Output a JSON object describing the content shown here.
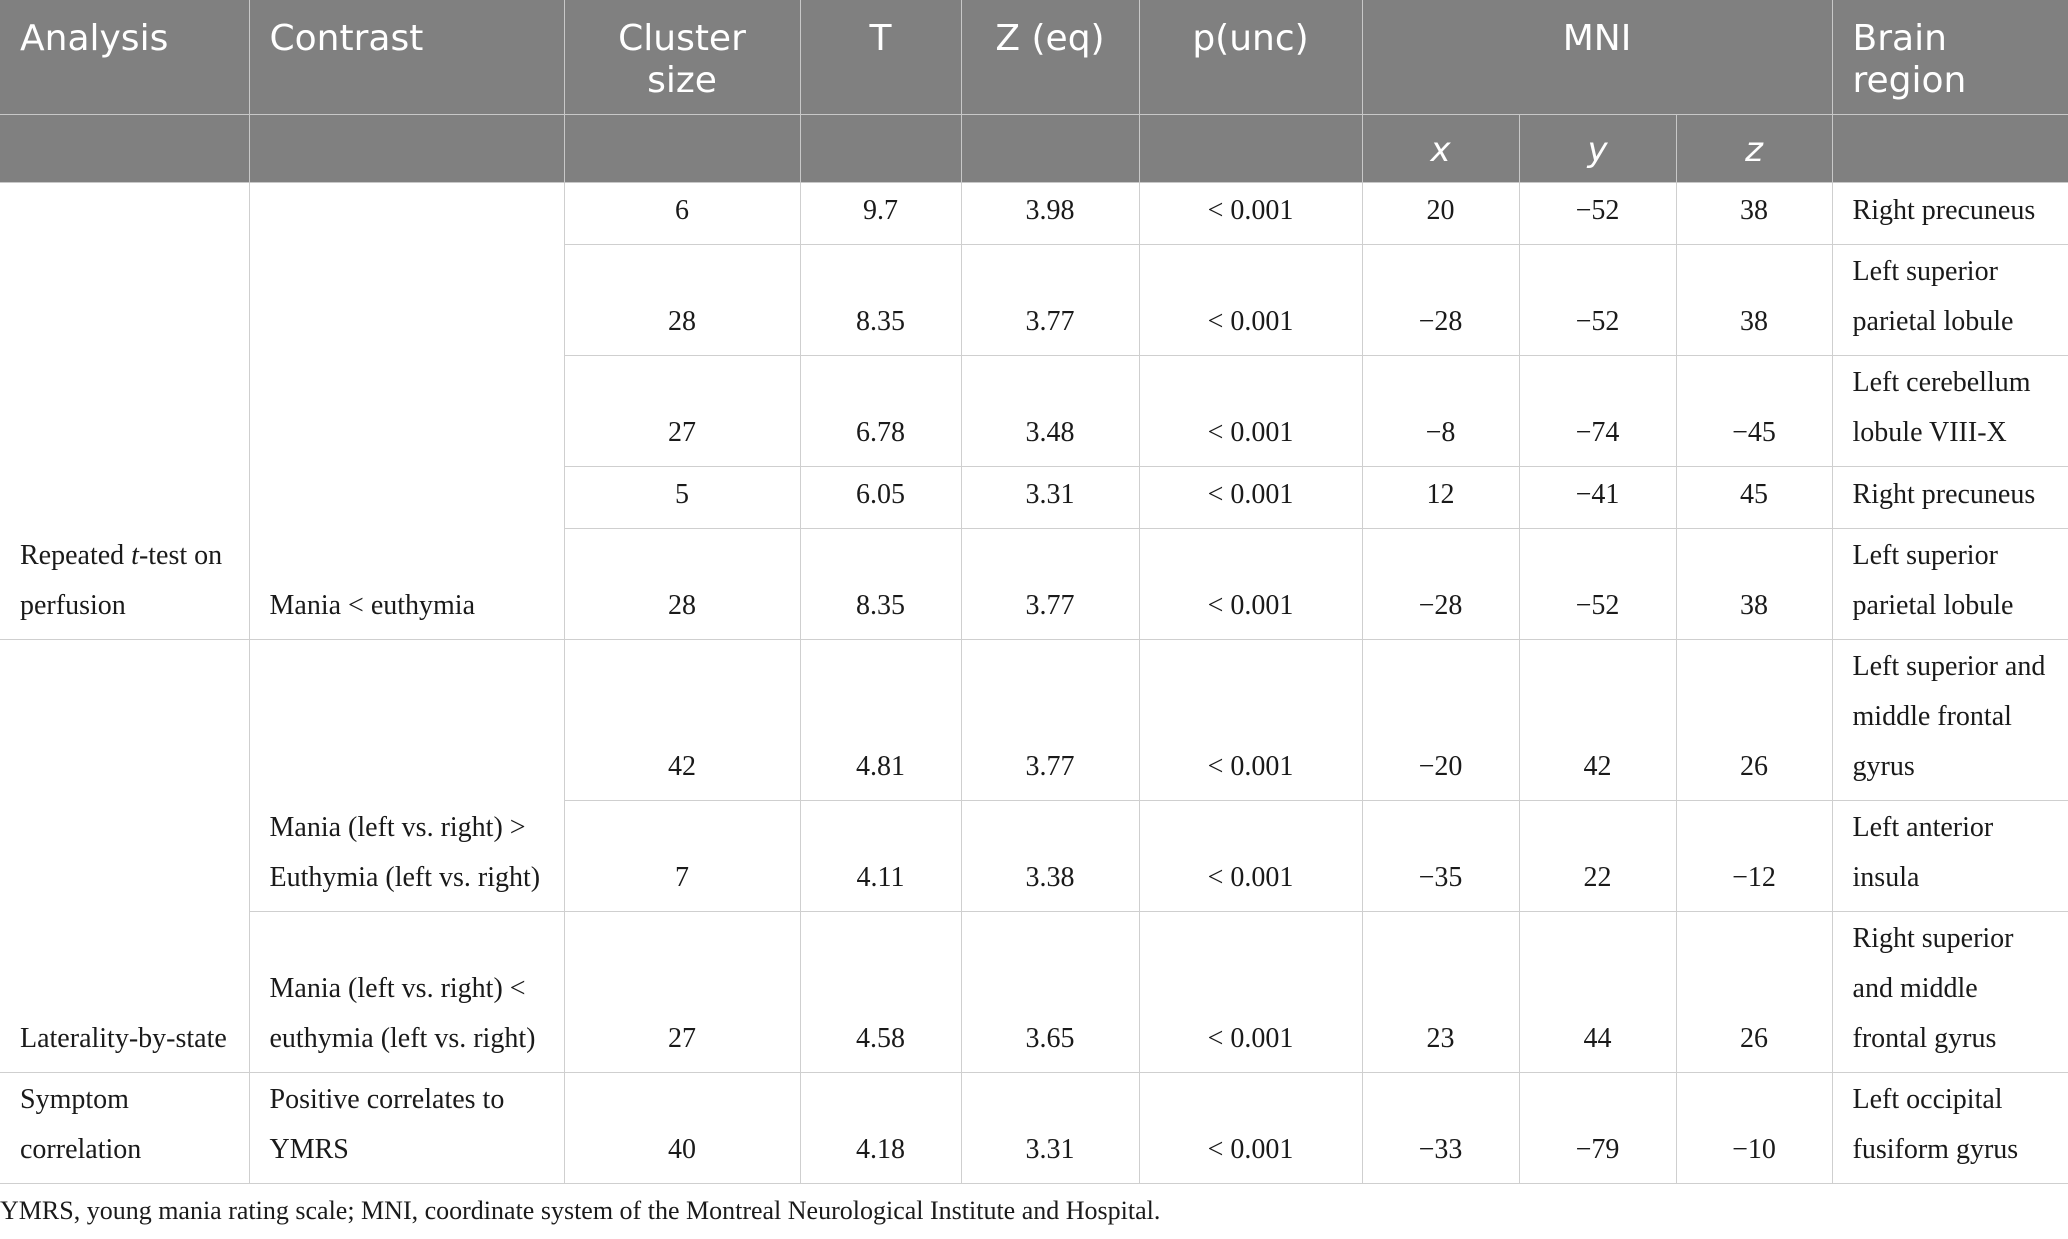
{
  "table": {
    "headers": {
      "analysis": "Analysis",
      "contrast": "Contrast",
      "cluster_size": "Cluster size",
      "t": "T",
      "z_eq": "Z (eq)",
      "p_unc": "p(unc)",
      "mni": "MNI",
      "brain_region": "Brain region",
      "mni_x": "x",
      "mni_y": "y",
      "mni_z": "z"
    },
    "groups": [
      {
        "analysis_pre": "Repeated ",
        "analysis_italic": "t",
        "analysis_post": "-test on perfusion",
        "contrast": "Mania < euthymia"
      },
      {
        "analysis": "Laterality-by-state",
        "contrast_a": "Mania (left vs. right) > Euthymia (left vs. right)",
        "contrast_b": "Mania (left vs. right) < euthymia (left vs. right)"
      },
      {
        "analysis": "Symptom correlation",
        "contrast": "Positive correlates to YMRS"
      }
    ],
    "rows": [
      {
        "cluster": "6",
        "t": "9.7",
        "z": "3.98",
        "p": "< 0.001",
        "x": "20",
        "y": "−52",
        "mz": "38",
        "region": "Right precuneus"
      },
      {
        "cluster": "28",
        "t": "8.35",
        "z": "3.77",
        "p": "< 0.001",
        "x": "−28",
        "y": "−52",
        "mz": "38",
        "region": "Left superior parietal lobule"
      },
      {
        "cluster": "27",
        "t": "6.78",
        "z": "3.48",
        "p": "< 0.001",
        "x": "−8",
        "y": "−74",
        "mz": "−45",
        "region": "Left cerebellum lobule VIII-X"
      },
      {
        "cluster": "5",
        "t": "6.05",
        "z": "3.31",
        "p": "< 0.001",
        "x": "12",
        "y": "−41",
        "mz": "45",
        "region": "Right precuneus"
      },
      {
        "cluster": "28",
        "t": "8.35",
        "z": "3.77",
        "p": "< 0.001",
        "x": "−28",
        "y": "−52",
        "mz": "38",
        "region": "Left superior parietal lobule"
      },
      {
        "cluster": "42",
        "t": "4.81",
        "z": "3.77",
        "p": "< 0.001",
        "x": "−20",
        "y": "42",
        "mz": "26",
        "region": "Left superior and middle frontal gyrus"
      },
      {
        "cluster": "7",
        "t": "4.11",
        "z": "3.38",
        "p": "< 0.001",
        "x": "−35",
        "y": "22",
        "mz": "−12",
        "region": "Left anterior insula"
      },
      {
        "cluster": "27",
        "t": "4.58",
        "z": "3.65",
        "p": "< 0.001",
        "x": "23",
        "y": "44",
        "mz": "26",
        "region": "Right superior and middle frontal gyrus"
      },
      {
        "cluster": "40",
        "t": "4.18",
        "z": "3.31",
        "p": "< 0.001",
        "x": "−33",
        "y": "−79",
        "mz": "−10",
        "region": "Left occipital fusiform gyrus"
      }
    ]
  },
  "footnote": "YMRS, young mania rating scale; MNI, coordinate system of the Montreal Neurological Institute and Hospital."
}
